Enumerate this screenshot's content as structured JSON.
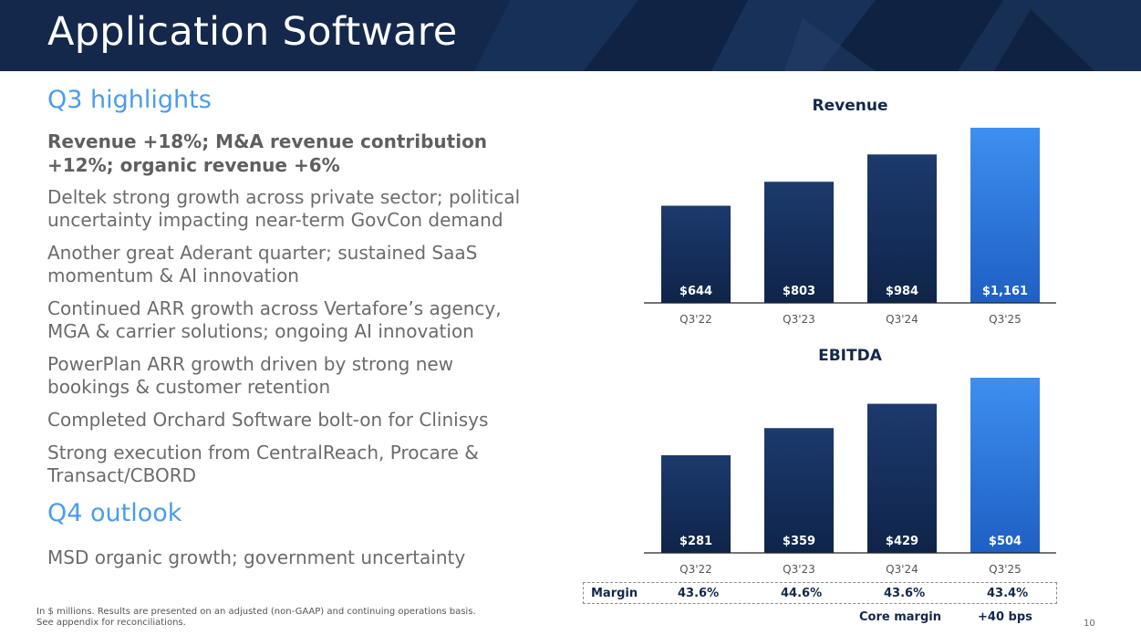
{
  "header": {
    "title": "Application Software"
  },
  "highlights": {
    "heading": "Q3 highlights",
    "lead": "Revenue +18%; M&A revenue contribution +12%; organic revenue +6%",
    "bullets": [
      "Deltek strong growth across private sector; political uncertainty impacting near-term GovCon demand",
      "Another great Aderant quarter; sustained SaaS momentum & AI innovation",
      "Continued ARR growth across Vertafore’s agency, MGA & carrier solutions; ongoing AI innovation",
      "PowerPlan ARR growth driven by strong new bookings & customer retention",
      "Completed Orchard Software bolt-on for Clinisys",
      "Strong execution from CentralReach, Procare & Transact/CBORD"
    ]
  },
  "outlook": {
    "heading": "Q4 outlook",
    "bullets": [
      "MSD organic growth; government uncertainty"
    ]
  },
  "footnote": {
    "line1": "In $ millions. Results are presented on an adjusted (non-GAAP) and continuing operations basis.",
    "line2": "See appendix for reconciliations."
  },
  "page_number": "10",
  "colors": {
    "dark_bar": "#14305e",
    "highlight_bar": "#3d8ff0",
    "heading_blue": "#4a9cf0",
    "navy": "#13284b"
  },
  "chart_data": [
    {
      "type": "bar",
      "title": "Revenue",
      "categories": [
        "Q3'22",
        "Q3'23",
        "Q3'24",
        "Q3'25"
      ],
      "values": [
        644,
        803,
        984,
        1161
      ],
      "value_labels": [
        "$644",
        "$803",
        "$984",
        "$1,161"
      ],
      "highlight_index": 3,
      "ylim": [
        0,
        1161
      ],
      "xlabel": "",
      "ylabel": ""
    },
    {
      "type": "bar",
      "title": "EBITDA",
      "categories": [
        "Q3'22",
        "Q3'23",
        "Q3'24",
        "Q3'25"
      ],
      "values": [
        281,
        359,
        429,
        504
      ],
      "value_labels": [
        "$281",
        "$359",
        "$429",
        "$504"
      ],
      "highlight_index": 3,
      "ylim": [
        0,
        504
      ],
      "xlabel": "",
      "ylabel": ""
    }
  ],
  "margin_row": {
    "label": "Margin",
    "values": [
      "43.6%",
      "44.6%",
      "43.6%",
      "43.4%"
    ]
  },
  "core_margin": {
    "label": "Core margin",
    "value": "+40 bps"
  }
}
